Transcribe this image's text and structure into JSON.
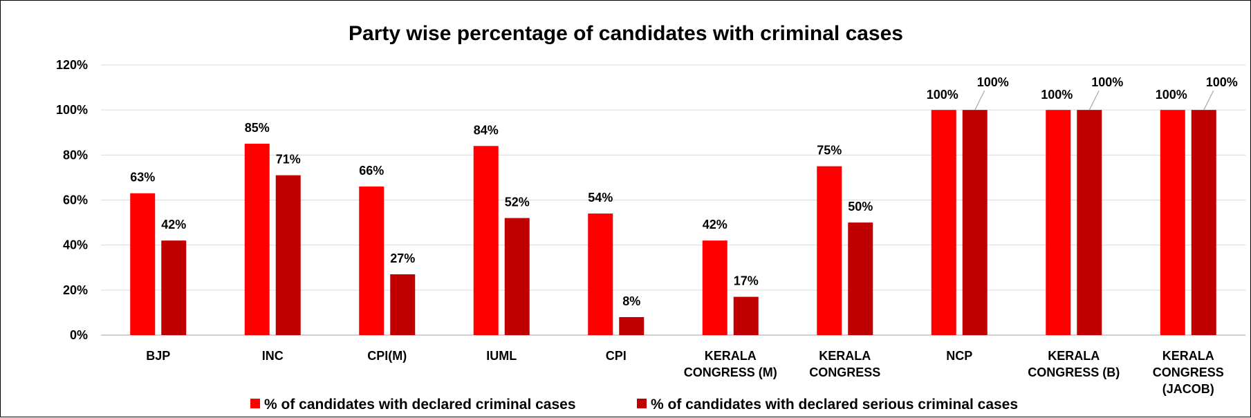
{
  "chart_data": {
    "type": "bar",
    "title": "Party wise percentage of candidates with criminal cases",
    "xlabel": "",
    "ylabel": "",
    "ylim": [
      0,
      120
    ],
    "yticks": [
      "0%",
      "20%",
      "40%",
      "60%",
      "80%",
      "100%",
      "120%"
    ],
    "grid": true,
    "legend_position": "bottom",
    "categories": [
      [
        "BJP"
      ],
      [
        "INC"
      ],
      [
        "CPI(M)"
      ],
      [
        "IUML"
      ],
      [
        "CPI"
      ],
      [
        "KERALA",
        "CONGRESS (M)"
      ],
      [
        "KERALA",
        "CONGRESS"
      ],
      [
        "NCP"
      ],
      [
        "KERALA",
        "CONGRESS (B)"
      ],
      [
        "KERALA",
        "CONGRESS",
        "(JACOB)"
      ]
    ],
    "series": [
      {
        "name": "% of candidates with declared criminal cases",
        "color": "#ff0000",
        "values": [
          63,
          85,
          66,
          84,
          54,
          42,
          75,
          100,
          100,
          100
        ],
        "labels": [
          "63%",
          "85%",
          "66%",
          "84%",
          "54%",
          "42%",
          "75%",
          "100%",
          "100%",
          "100%"
        ]
      },
      {
        "name": "% of candidates with declared serious criminal cases",
        "color": "#c00000",
        "values": [
          42,
          71,
          27,
          52,
          8,
          17,
          50,
          100,
          100,
          100
        ],
        "labels": [
          "42%",
          "71%",
          "27%",
          "52%",
          "8%",
          "17%",
          "50%",
          "100%",
          "100%",
          "100%"
        ]
      }
    ]
  }
}
